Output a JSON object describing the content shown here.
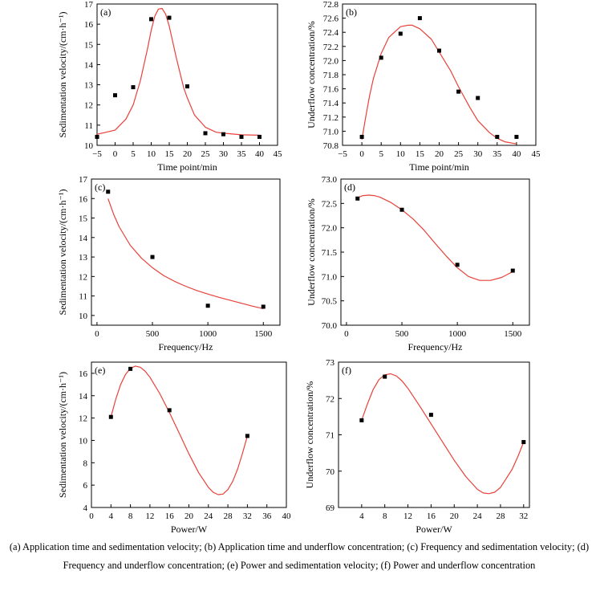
{
  "caption": "(a) Application time and sedimentation velocity; (b) Application time and underflow concentration; (c) Frequency and sedimentation velocity; (d) Frequency and underflow concentration; (e) Power and sedimentation velocity; (f) Power and underflow concentration",
  "colors": {
    "fit": "#e8413a",
    "marker": "#000000",
    "axis": "#000000"
  },
  "chart_data": [
    {
      "type": "scatter",
      "panel": "(a)",
      "xlabel": "Time point/min",
      "ylabel": "Sedimentation velocity/(cm·h⁻¹)",
      "xlim": [
        -5,
        45
      ],
      "ylim": [
        10,
        17
      ],
      "xticks": [
        -5,
        0,
        5,
        10,
        15,
        20,
        25,
        30,
        35,
        40,
        45
      ],
      "xtick_labels": [
        "−5",
        "0",
        "5",
        "10",
        "15",
        "20",
        "25",
        "30",
        "35",
        "40",
        "45"
      ],
      "yticks": [
        10,
        11,
        12,
        13,
        14,
        15,
        16,
        17
      ],
      "ytick_labels": [
        "10",
        "11",
        "12",
        "13",
        "14",
        "15",
        "16",
        "17"
      ],
      "x": [
        -5,
        0,
        5,
        10,
        15,
        20,
        25,
        30,
        35,
        40
      ],
      "y": [
        10.42,
        12.48,
        12.88,
        16.25,
        16.32,
        12.92,
        10.6,
        10.55,
        10.42,
        10.42
      ],
      "fit": {
        "x": [
          -5,
          0,
          3,
          5,
          7,
          9,
          10,
          11,
          12,
          13,
          14,
          15,
          17,
          19,
          20,
          22,
          25,
          28,
          30,
          35,
          40
        ],
        "y": [
          10.55,
          10.75,
          11.3,
          12.0,
          13.2,
          14.8,
          15.7,
          16.4,
          16.75,
          16.78,
          16.5,
          15.9,
          14.3,
          12.85,
          12.35,
          11.5,
          10.9,
          10.65,
          10.6,
          10.52,
          10.5
        ]
      }
    },
    {
      "type": "scatter",
      "panel": "(b)",
      "xlabel": "Time point/min",
      "ylabel": "Underflow concentration/%",
      "xlim": [
        -5,
        45
      ],
      "ylim": [
        70.8,
        72.8
      ],
      "xticks": [
        -5,
        0,
        5,
        10,
        15,
        20,
        25,
        30,
        35,
        40,
        45
      ],
      "xtick_labels": [
        "−5",
        "0",
        "5",
        "10",
        "15",
        "20",
        "25",
        "30",
        "35",
        "40",
        "45"
      ],
      "yticks": [
        70.8,
        71.0,
        71.2,
        71.4,
        71.6,
        71.8,
        72.0,
        72.2,
        72.4,
        72.6,
        72.8
      ],
      "ytick_labels": [
        "70.8",
        "71.0",
        "71.2",
        "71.4",
        "71.6",
        "71.8",
        "72.0",
        "72.2",
        "72.4",
        "72.6",
        "72.8"
      ],
      "x": [
        0,
        5,
        10,
        15,
        20,
        25,
        30,
        35,
        40
      ],
      "y": [
        70.92,
        72.04,
        72.38,
        72.6,
        72.14,
        71.56,
        71.47,
        70.92,
        70.92
      ],
      "fit": {
        "x": [
          0,
          1,
          2,
          3,
          5,
          7,
          10,
          12,
          13,
          15,
          18,
          20,
          23,
          25,
          28,
          30,
          33,
          35,
          37,
          40
        ],
        "y": [
          70.88,
          71.2,
          71.5,
          71.75,
          72.1,
          72.33,
          72.48,
          72.5,
          72.5,
          72.45,
          72.3,
          72.12,
          71.85,
          71.63,
          71.33,
          71.15,
          70.98,
          70.9,
          70.85,
          70.82
        ]
      }
    },
    {
      "type": "scatter",
      "panel": "(c)",
      "xlabel": "Frequency/Hz",
      "ylabel": "Sedimentation velocity/(cm·h⁻¹)",
      "xlim": [
        -50,
        1650
      ],
      "ylim": [
        9.5,
        17
      ],
      "xticks": [
        0,
        500,
        1000,
        1500
      ],
      "xtick_labels": [
        "0",
        "500",
        "1000",
        "1500"
      ],
      "yticks": [
        10,
        11,
        12,
        13,
        14,
        15,
        16,
        17
      ],
      "ytick_labels": [
        "10",
        "11",
        "12",
        "13",
        "14",
        "15",
        "16",
        "17"
      ],
      "x": [
        100,
        500,
        1000,
        1500
      ],
      "y": [
        16.35,
        13.0,
        10.5,
        10.45
      ],
      "fit": {
        "x": [
          100,
          150,
          200,
          300,
          400,
          500,
          600,
          700,
          800,
          900,
          1000,
          1100,
          1200,
          1300,
          1400,
          1500
        ],
        "y": [
          16.0,
          15.2,
          14.55,
          13.6,
          12.95,
          12.45,
          12.05,
          11.75,
          11.5,
          11.28,
          11.1,
          10.93,
          10.78,
          10.63,
          10.48,
          10.35
        ]
      }
    },
    {
      "type": "scatter",
      "panel": "(d)",
      "xlabel": "Frequency/Hz",
      "ylabel": "Underflow concentration/%",
      "xlim": [
        -50,
        1650
      ],
      "ylim": [
        70.0,
        73.0
      ],
      "xticks": [
        0,
        500,
        1000,
        1500
      ],
      "xtick_labels": [
        "0",
        "500",
        "1000",
        "1500"
      ],
      "yticks": [
        70.0,
        70.5,
        71.0,
        71.5,
        72.0,
        72.5,
        73.0
      ],
      "ytick_labels": [
        "70.0",
        "70.5",
        "71.0",
        "71.5",
        "72.0",
        "72.5",
        "73.0"
      ],
      "x": [
        100,
        500,
        1000,
        1500
      ],
      "y": [
        72.6,
        72.37,
        71.24,
        71.12
      ],
      "fit": {
        "x": [
          100,
          150,
          200,
          250,
          300,
          400,
          500,
          600,
          700,
          800,
          900,
          1000,
          1100,
          1200,
          1300,
          1400,
          1500
        ],
        "y": [
          72.62,
          72.66,
          72.67,
          72.66,
          72.63,
          72.52,
          72.37,
          72.18,
          71.95,
          71.68,
          71.42,
          71.18,
          71.0,
          70.92,
          70.92,
          70.98,
          71.1
        ]
      }
    },
    {
      "type": "scatter",
      "panel": "(e)",
      "xlabel": "Power/W",
      "ylabel": "Sedimentation velocity/(cm·h⁻¹)",
      "xlim": [
        0,
        40
      ],
      "ylim": [
        4,
        17
      ],
      "xticks": [
        0,
        4,
        8,
        12,
        16,
        20,
        24,
        28,
        32,
        36,
        40
      ],
      "xtick_labels": [
        "0",
        "4",
        "8",
        "12",
        "16",
        "20",
        "24",
        "28",
        "32",
        "36",
        "40"
      ],
      "yticks": [
        4,
        6,
        8,
        10,
        12,
        14,
        16
      ],
      "ytick_labels": [
        "4",
        "6",
        "8",
        "10",
        "12",
        "14",
        "16"
      ],
      "x": [
        4,
        8,
        16,
        32
      ],
      "y": [
        12.1,
        16.4,
        12.7,
        10.4
      ],
      "fit": {
        "x": [
          4,
          5,
          6,
          7,
          8,
          9,
          10,
          11,
          12,
          14,
          16,
          18,
          20,
          22,
          24,
          25,
          26,
          27,
          28,
          29,
          30,
          31,
          32
        ],
        "y": [
          12.1,
          13.7,
          15.0,
          15.9,
          16.45,
          16.65,
          16.55,
          16.2,
          15.65,
          14.2,
          12.5,
          10.65,
          8.8,
          7.1,
          5.8,
          5.35,
          5.15,
          5.2,
          5.6,
          6.35,
          7.45,
          8.85,
          10.4
        ]
      }
    },
    {
      "type": "scatter",
      "panel": "(f)",
      "xlabel": "Power/W",
      "ylabel": "Underflow concentration/%",
      "xlim": [
        0,
        33
      ],
      "ylim": [
        69,
        73
      ],
      "xticks": [
        4,
        8,
        12,
        16,
        20,
        24,
        28,
        32
      ],
      "xtick_labels": [
        "4",
        "8",
        "12",
        "16",
        "20",
        "24",
        "28",
        "32"
      ],
      "yticks": [
        69,
        70,
        71,
        72,
        73
      ],
      "ytick_labels": [
        "69",
        "70",
        "71",
        "72",
        "73"
      ],
      "x": [
        4,
        8,
        16,
        32
      ],
      "y": [
        71.4,
        72.6,
        71.55,
        70.8
      ],
      "fit": {
        "x": [
          4,
          5,
          6,
          7,
          8,
          9,
          10,
          11,
          12,
          14,
          16,
          18,
          20,
          22,
          24,
          25,
          26,
          27,
          28,
          29,
          30,
          31,
          32
        ],
        "y": [
          71.4,
          71.85,
          72.25,
          72.52,
          72.65,
          72.68,
          72.62,
          72.48,
          72.28,
          71.8,
          71.3,
          70.8,
          70.3,
          69.85,
          69.5,
          69.4,
          69.38,
          69.42,
          69.55,
          69.8,
          70.05,
          70.4,
          70.8
        ]
      }
    }
  ]
}
